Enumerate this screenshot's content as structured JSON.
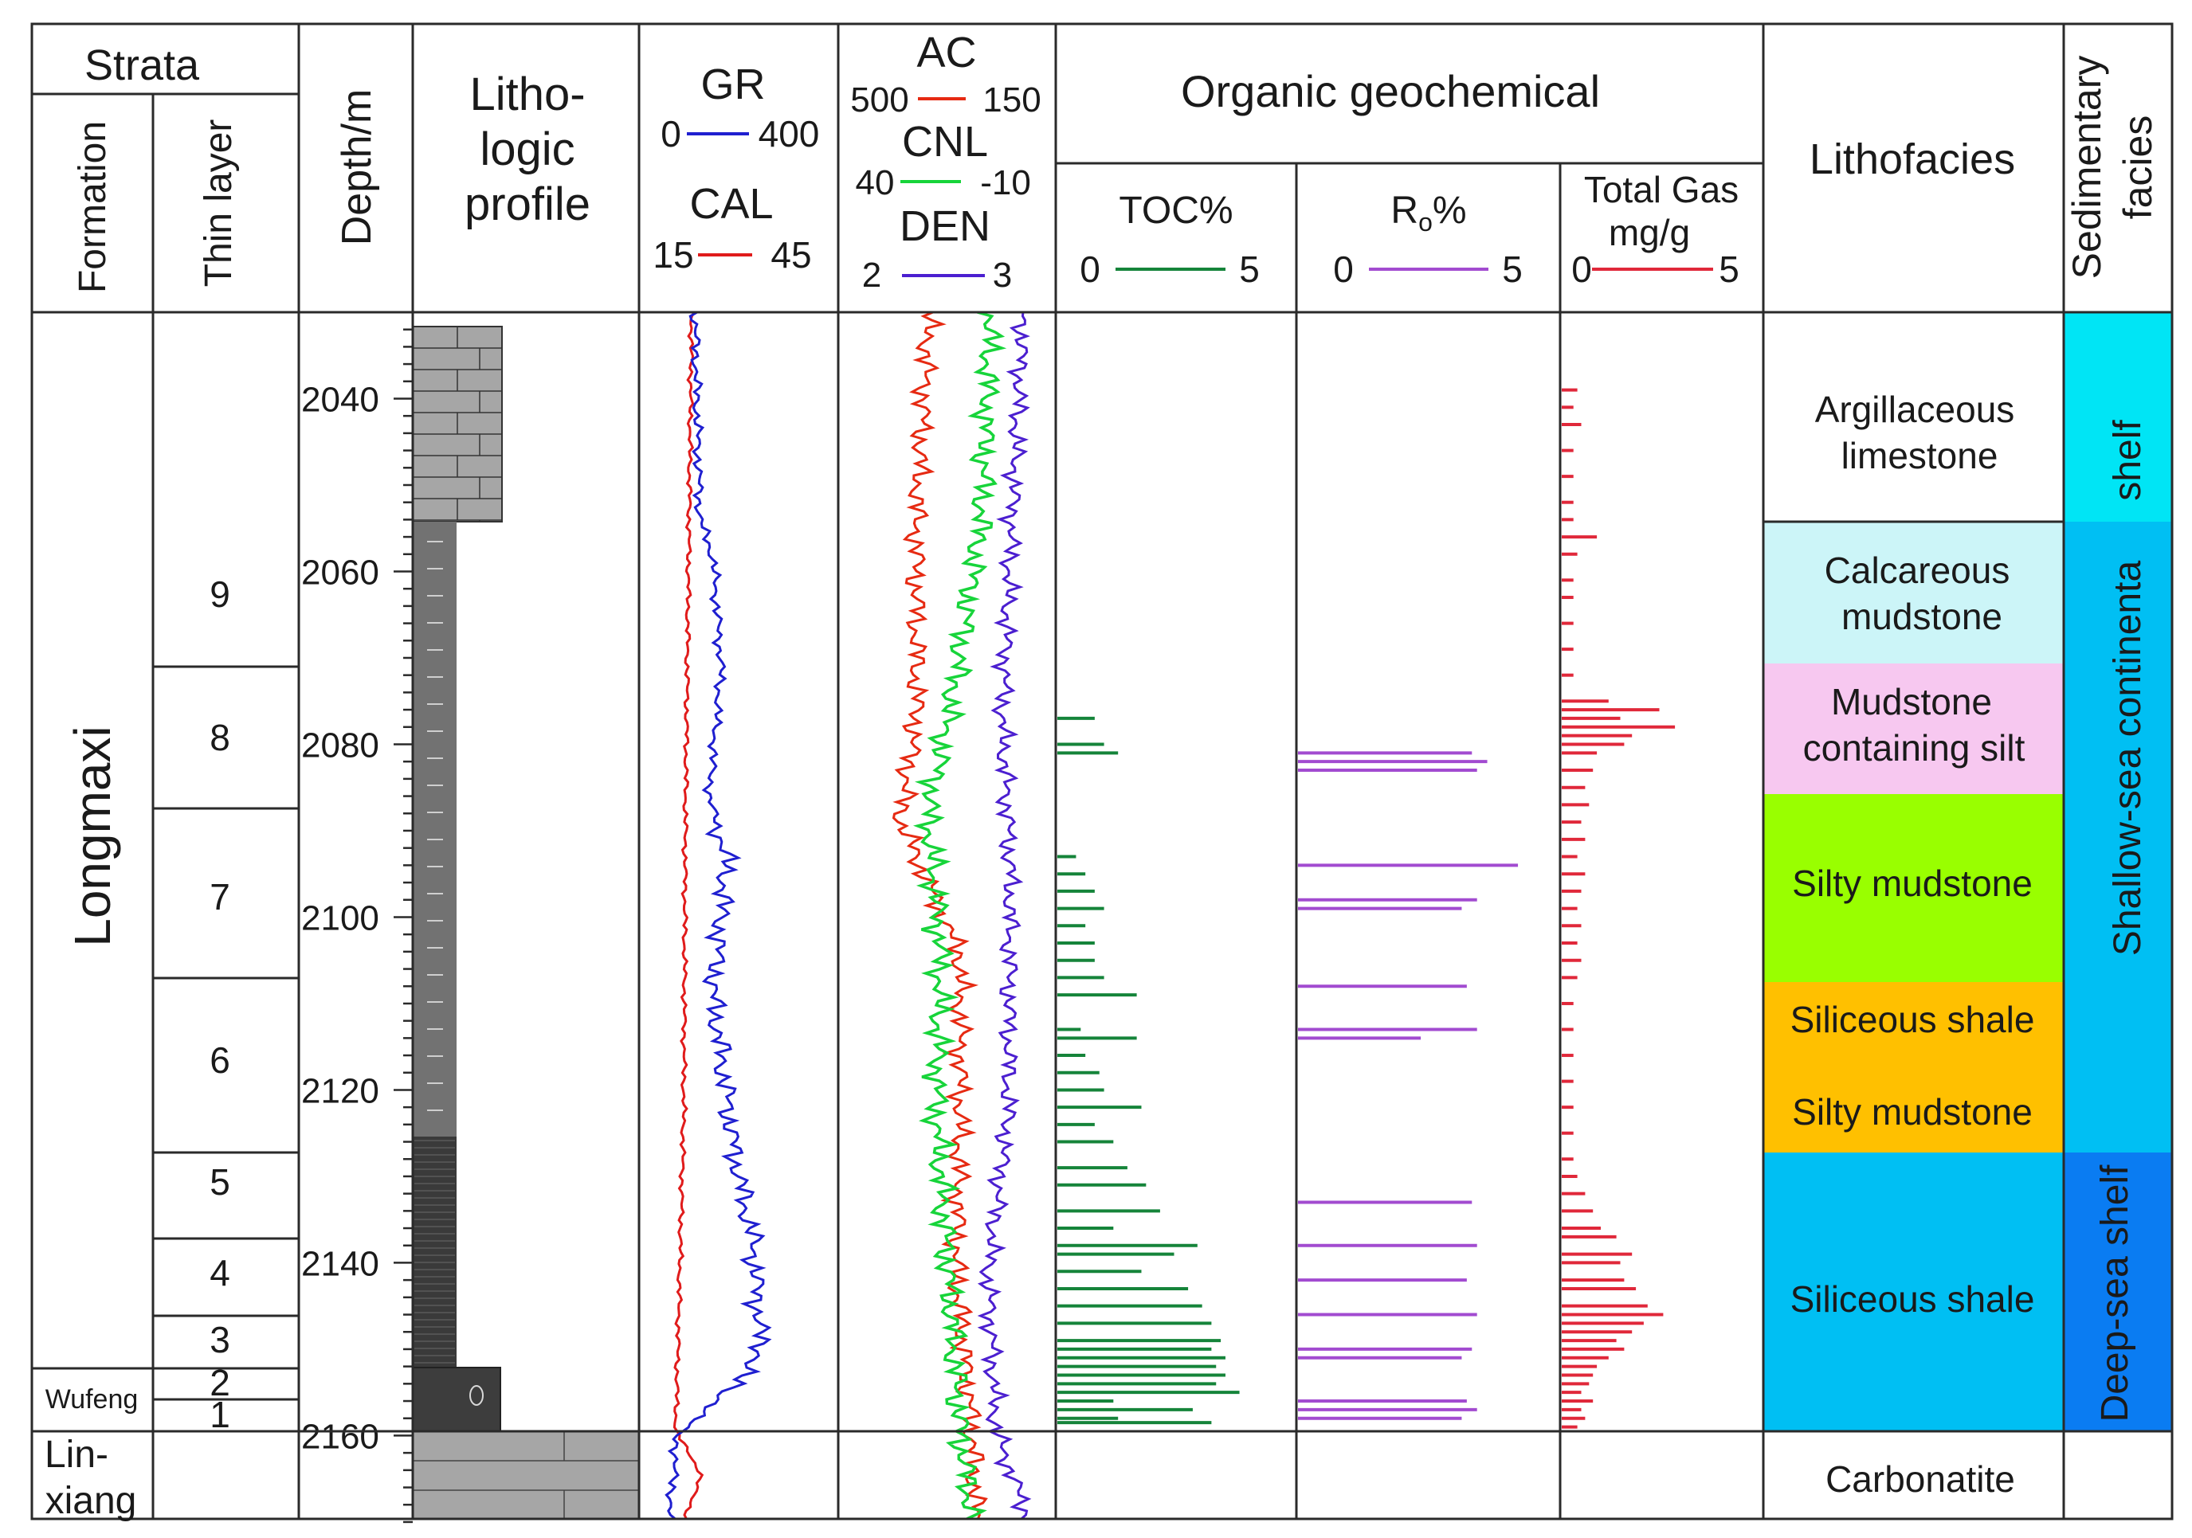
{
  "header": {
    "strata": "Strata",
    "formation": "Formation",
    "thin_layer": "Thin layer",
    "depth": "Depth/m",
    "litho": [
      "Litho-",
      "logic",
      "profile"
    ],
    "gr": {
      "name": "GR",
      "min": "0",
      "max": "400"
    },
    "cal": {
      "name": "CAL",
      "min": "15",
      "max": "45"
    },
    "ac": {
      "name": "AC",
      "min": "500",
      "max": "150"
    },
    "cnl": {
      "name": "CNL",
      "min": "40",
      "max": "-10"
    },
    "den": {
      "name": "DEN",
      "min": "2",
      "max": "3"
    },
    "organic": "Organic geochemical",
    "toc": {
      "name": "TOC%",
      "min": "0",
      "max": "5"
    },
    "ro": {
      "name": "R",
      "sub": "o",
      "suffix": "%",
      "min": "0",
      "max": "5"
    },
    "gas": {
      "name": "Total Gas",
      "unit": "mg/g",
      "min": "0",
      "max": "5"
    },
    "lithofacies": "Lithofacies",
    "sed": [
      "Sedimentary",
      "facies"
    ]
  },
  "formations": {
    "longmaxi": "Longmaxi",
    "wufeng": "Wufeng",
    "linxiang": [
      "Lin-",
      "xiang"
    ]
  },
  "thin_layers": [
    "9",
    "8",
    "7",
    "6",
    "5",
    "4",
    "3",
    "2",
    "1"
  ],
  "depth_ticks": [
    "2040",
    "2060",
    "2080",
    "2100",
    "2120",
    "2140",
    "2160"
  ],
  "lithofacies": [
    {
      "lines": [
        "Argillaceous",
        "limestone"
      ],
      "color": "#ffffff"
    },
    {
      "lines": [
        "Calcareous",
        "mudstone"
      ],
      "color": "#ccf5f8"
    },
    {
      "lines": [
        "Mudstone",
        "containing silt"
      ],
      "color": "#f7c8f0"
    },
    {
      "lines": [
        "Silty mudstone"
      ],
      "color": "#99ff00"
    },
    {
      "lines": [
        "Siliceous shale",
        "Silty mudstone"
      ],
      "color": "#ffc000"
    },
    {
      "lines": [
        "Siliceous shale"
      ],
      "color": "#00bff3"
    },
    {
      "lines": [
        "Carbonatite"
      ],
      "color": "#ffffff"
    }
  ],
  "sedimentary_facies": [
    {
      "label": "shelf",
      "color": "#00e5f5"
    },
    {
      "label": "Shallow-sea continenta",
      "color": "#00bff3"
    },
    {
      "label": "Deep-sea shelf",
      "color": "#0a7cf2"
    }
  ],
  "colors": {
    "gr": "#1f1fd0",
    "cal": "#e01b1b",
    "ac": "#e62a12",
    "cnl": "#17d43a",
    "den": "#4b1fd0",
    "toc": "#15843a",
    "ro": "#a24bd0",
    "gas": "#e0283a",
    "layer_numbers": "#1a2fc4"
  },
  "chart_data": {
    "type": "well-log",
    "depth_unit": "m",
    "depth_range": [
      2030,
      2172
    ],
    "toc_percent": [
      [
        2077,
        0.8
      ],
      [
        2080,
        1.0
      ],
      [
        2081,
        1.3
      ],
      [
        2093,
        0.4
      ],
      [
        2095,
        0.6
      ],
      [
        2097,
        0.8
      ],
      [
        2099,
        1.0
      ],
      [
        2101,
        0.6
      ],
      [
        2103,
        0.8
      ],
      [
        2105,
        0.8
      ],
      [
        2107,
        1.0
      ],
      [
        2109,
        1.7
      ],
      [
        2113,
        0.5
      ],
      [
        2114,
        1.7
      ],
      [
        2116,
        0.6
      ],
      [
        2118,
        0.9
      ],
      [
        2120,
        1.0
      ],
      [
        2122,
        1.8
      ],
      [
        2124,
        0.8
      ],
      [
        2126,
        1.2
      ],
      [
        2129,
        1.5
      ],
      [
        2131,
        1.9
      ],
      [
        2134,
        2.2
      ],
      [
        2136,
        1.2
      ],
      [
        2138,
        3.0
      ],
      [
        2139,
        2.5
      ],
      [
        2141,
        1.8
      ],
      [
        2143,
        2.8
      ],
      [
        2145,
        3.1
      ],
      [
        2147,
        3.3
      ],
      [
        2149,
        3.5
      ],
      [
        2150,
        3.3
      ],
      [
        2151,
        3.6
      ],
      [
        2152,
        3.4
      ],
      [
        2153,
        3.6
      ],
      [
        2154,
        3.4
      ],
      [
        2155,
        3.9
      ],
      [
        2156,
        1.2
      ],
      [
        2157,
        2.9
      ],
      [
        2158,
        1.3
      ],
      [
        2158.5,
        3.3
      ]
    ],
    "ro_percent": [
      [
        2081,
        3.4
      ],
      [
        2082,
        3.7
      ],
      [
        2083,
        3.5
      ],
      [
        2094,
        4.3
      ],
      [
        2098,
        3.5
      ],
      [
        2099,
        3.2
      ],
      [
        2108,
        3.3
      ],
      [
        2113,
        3.5
      ],
      [
        2114,
        2.4
      ],
      [
        2133,
        3.4
      ],
      [
        2138,
        3.5
      ],
      [
        2142,
        3.3
      ],
      [
        2146,
        3.5
      ],
      [
        2150,
        3.4
      ],
      [
        2151,
        3.2
      ],
      [
        2156,
        3.3
      ],
      [
        2157,
        3.5
      ],
      [
        2158,
        3.2
      ]
    ],
    "total_gas_mg_g": [
      [
        2039,
        0.4
      ],
      [
        2041,
        0.3
      ],
      [
        2043,
        0.5
      ],
      [
        2046,
        0.3
      ],
      [
        2049,
        0.3
      ],
      [
        2052,
        0.3
      ],
      [
        2054,
        0.3
      ],
      [
        2056,
        0.9
      ],
      [
        2058,
        0.4
      ],
      [
        2061,
        0.3
      ],
      [
        2063,
        0.3
      ],
      [
        2066,
        0.3
      ],
      [
        2069,
        0.3
      ],
      [
        2072,
        0.3
      ],
      [
        2075,
        1.2
      ],
      [
        2076,
        2.5
      ],
      [
        2077,
        1.5
      ],
      [
        2078,
        2.9
      ],
      [
        2079,
        1.8
      ],
      [
        2080,
        1.6
      ],
      [
        2081,
        0.9
      ],
      [
        2083,
        0.8
      ],
      [
        2085,
        0.6
      ],
      [
        2087,
        0.7
      ],
      [
        2089,
        0.5
      ],
      [
        2091,
        0.6
      ],
      [
        2093,
        0.4
      ],
      [
        2095,
        0.6
      ],
      [
        2097,
        0.5
      ],
      [
        2099,
        0.4
      ],
      [
        2101,
        0.5
      ],
      [
        2103,
        0.4
      ],
      [
        2105,
        0.5
      ],
      [
        2107,
        0.4
      ],
      [
        2110,
        0.3
      ],
      [
        2113,
        0.3
      ],
      [
        2116,
        0.3
      ],
      [
        2119,
        0.3
      ],
      [
        2122,
        0.3
      ],
      [
        2125,
        0.3
      ],
      [
        2128,
        0.3
      ],
      [
        2130,
        0.4
      ],
      [
        2132,
        0.6
      ],
      [
        2134,
        0.8
      ],
      [
        2136,
        1.0
      ],
      [
        2137,
        1.4
      ],
      [
        2139,
        1.8
      ],
      [
        2140,
        1.5
      ],
      [
        2142,
        1.6
      ],
      [
        2143,
        1.9
      ],
      [
        2145,
        2.2
      ],
      [
        2146,
        2.6
      ],
      [
        2147,
        2.1
      ],
      [
        2148,
        1.8
      ],
      [
        2149,
        1.4
      ],
      [
        2150,
        1.6
      ],
      [
        2151,
        1.2
      ],
      [
        2152,
        0.9
      ],
      [
        2153,
        0.8
      ],
      [
        2154,
        0.7
      ],
      [
        2155,
        0.5
      ],
      [
        2156,
        0.8
      ],
      [
        2157,
        0.5
      ],
      [
        2158,
        0.6
      ],
      [
        2159,
        0.4
      ]
    ]
  }
}
